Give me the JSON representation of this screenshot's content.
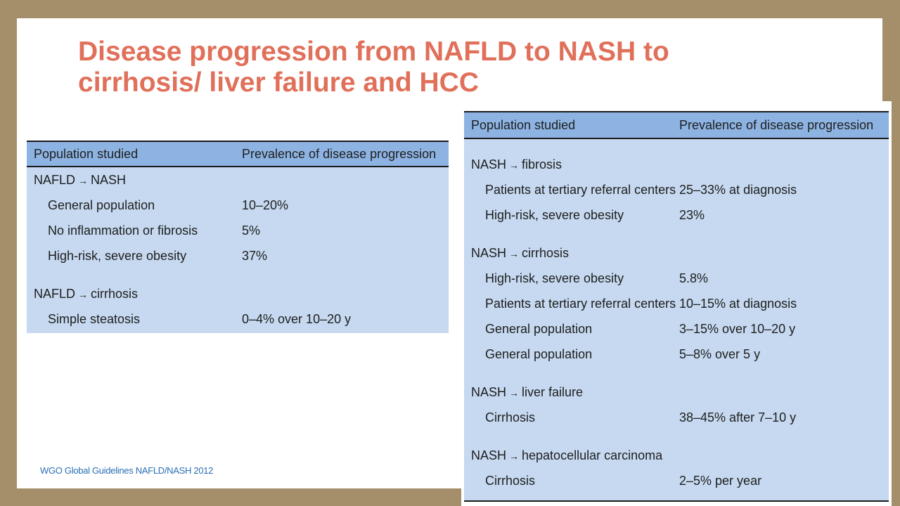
{
  "title": "Disease progression from NAFLD to NASH to cirrhosis/ liver failure and HCC",
  "footnote": "WGO Global Guidelines NAFLD/NASH 2012",
  "arrow": "→",
  "left_table": {
    "headers": [
      "Population studied",
      "Prevalence of disease progression"
    ],
    "groups": [
      {
        "from": "NAFLD",
        "to": "NASH",
        "rows": [
          {
            "population": "General population",
            "prevalence": "10–20%"
          },
          {
            "population": "No inflammation or fibrosis",
            "prevalence": "5%"
          },
          {
            "population": "High-risk, severe obesity",
            "prevalence": "37%"
          }
        ]
      },
      {
        "from": "NAFLD",
        "to": "cirrhosis",
        "rows": [
          {
            "population": "Simple steatosis",
            "prevalence": "0–4% over 10–20 y"
          }
        ]
      }
    ]
  },
  "right_table": {
    "headers": [
      "Population studied",
      "Prevalence of disease progression"
    ],
    "groups": [
      {
        "from": "NASH",
        "to": "fibrosis",
        "rows": [
          {
            "population": "Patients at tertiary referral centers",
            "prevalence": "25–33% at diagnosis"
          },
          {
            "population": "High-risk, severe obesity",
            "prevalence": "23%"
          }
        ]
      },
      {
        "from": "NASH",
        "to": "cirrhosis",
        "rows": [
          {
            "population": "High-risk, severe obesity",
            "prevalence": "5.8%"
          },
          {
            "population": "Patients at tertiary referral centers",
            "prevalence": "10–15% at diagnosis"
          },
          {
            "population": "General population",
            "prevalence": "3–15% over 10–20 y"
          },
          {
            "population": "General population",
            "prevalence": "5–8% over 5 y"
          }
        ]
      },
      {
        "from": "NASH",
        "to": "liver failure",
        "rows": [
          {
            "population": "Cirrhosis",
            "prevalence": "38–45% after 7–10 y"
          }
        ]
      },
      {
        "from": "NASH",
        "to": "hepatocellular carcinoma",
        "rows": [
          {
            "population": "Cirrhosis",
            "prevalence": "2–5% per year"
          }
        ]
      }
    ]
  }
}
